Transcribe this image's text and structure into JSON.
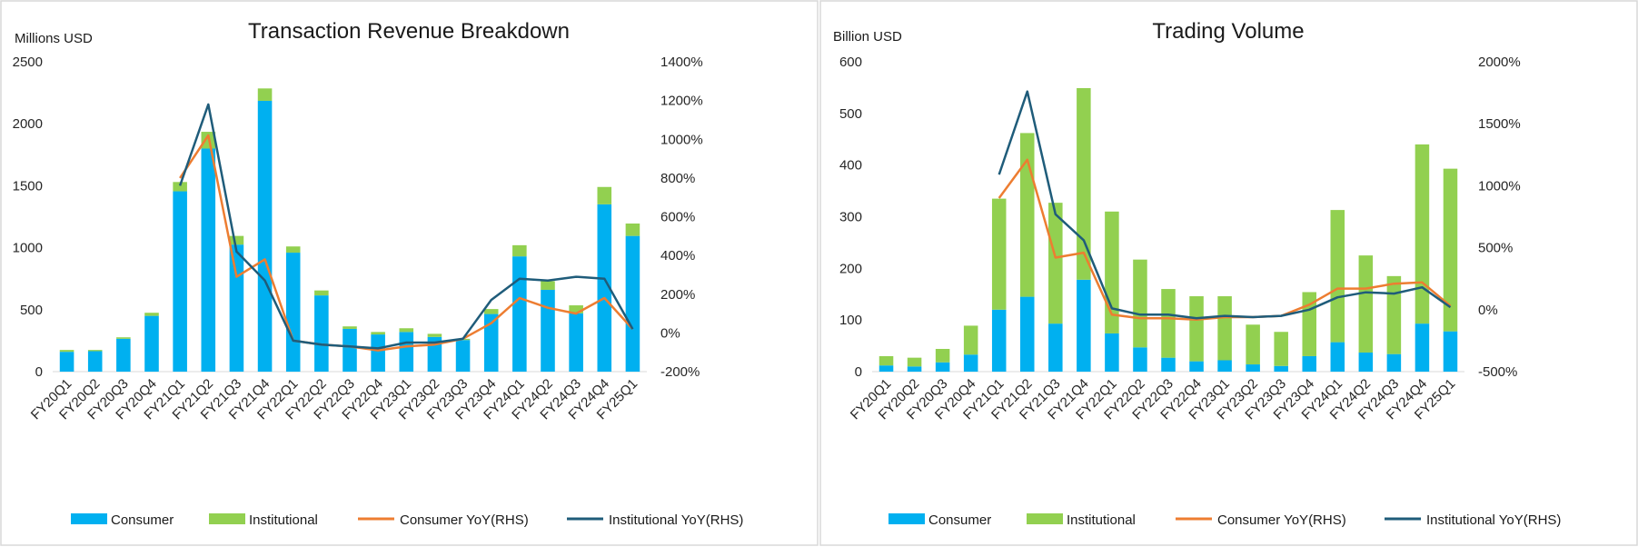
{
  "colors": {
    "consumer": "#00b0f0",
    "institutional": "#92d050",
    "consumer_yoy": "#ed7d31",
    "institutional_yoy": "#1f5c7a"
  },
  "chart_data": [
    {
      "type": "bar",
      "stacked": true,
      "title": "Transaction Revenue Breakdown",
      "ylabel": "Millions USD",
      "y2label": "",
      "categories": [
        "FY20Q1",
        "FY20Q2",
        "FY20Q3",
        "FY20Q4",
        "FY21Q1",
        "FY21Q2",
        "FY21Q3",
        "FY21Q4",
        "FY22Q1",
        "FY22Q2",
        "FY22Q3",
        "FY22Q4",
        "FY23Q1",
        "FY23Q2",
        "FY23Q3",
        "FY23Q4",
        "FY24Q1",
        "FY24Q2",
        "FY24Q3",
        "FY24Q4",
        "FY25Q1"
      ],
      "ylim": [
        0,
        2500
      ],
      "yticks": [
        0,
        500,
        1000,
        1500,
        2000,
        2500
      ],
      "ytick_labels": [
        "0",
        "500",
        "1000",
        "1500",
        "2000",
        "2500"
      ],
      "y2lim": [
        -200,
        1400
      ],
      "y2ticks": [
        -200,
        0,
        200,
        400,
        600,
        800,
        1000,
        1200,
        1400
      ],
      "y2tick_labels": [
        "-200%",
        "0%",
        "200%",
        "400%",
        "600%",
        "800%",
        "1000%",
        "1200%",
        "1400%"
      ],
      "series": [
        {
          "name": "Consumer",
          "kind": "bar",
          "values": [
            160,
            165,
            265,
            450,
            1455,
            1800,
            1025,
            2185,
            960,
            615,
            345,
            300,
            320,
            280,
            255,
            465,
            930,
            660,
            470,
            1350,
            1095
          ]
        },
        {
          "name": "Institutional",
          "kind": "bar",
          "values": [
            15,
            10,
            12,
            25,
            75,
            135,
            70,
            100,
            50,
            40,
            20,
            20,
            30,
            25,
            10,
            40,
            90,
            70,
            65,
            140,
            100
          ]
        },
        {
          "name": "Consumer YoY(RHS)",
          "kind": "line",
          "axis": "right",
          "values": [
            null,
            null,
            null,
            null,
            800,
            1020,
            290,
            380,
            -40,
            -60,
            -70,
            -90,
            -70,
            -60,
            -30,
            50,
            180,
            130,
            100,
            180,
            20
          ]
        },
        {
          "name": "Institutional YoY(RHS)",
          "kind": "line",
          "axis": "right",
          "values": [
            null,
            null,
            null,
            null,
            760,
            1180,
            420,
            270,
            -40,
            -60,
            -70,
            -80,
            -50,
            -50,
            -30,
            170,
            280,
            270,
            290,
            280,
            20
          ]
        }
      ]
    },
    {
      "type": "bar",
      "stacked": true,
      "title": "Trading Volume",
      "ylabel": "Billion USD",
      "y2label": "",
      "categories": [
        "FY20Q1",
        "FY20Q2",
        "FY20Q3",
        "FY20Q4",
        "FY21Q1",
        "FY21Q2",
        "FY21Q3",
        "FY21Q4",
        "FY22Q1",
        "FY22Q2",
        "FY22Q3",
        "FY22Q4",
        "FY23Q1",
        "FY23Q2",
        "FY23Q3",
        "FY23Q4",
        "FY24Q1",
        "FY24Q2",
        "FY24Q3",
        "FY24Q4",
        "FY25Q1"
      ],
      "ylim": [
        0,
        600
      ],
      "yticks": [
        0,
        100,
        200,
        300,
        400,
        500,
        600
      ],
      "ytick_labels": [
        "0",
        "100",
        "200",
        "300",
        "400",
        "500",
        "600"
      ],
      "y2lim": [
        -500,
        2000
      ],
      "y2ticks": [
        -500,
        0,
        500,
        1000,
        1500,
        2000
      ],
      "y2tick_labels": [
        "-500%",
        "0%",
        "500%",
        "1000%",
        "1500%",
        "2000%"
      ],
      "series": [
        {
          "name": "Consumer",
          "kind": "bar",
          "values": [
            12,
            10,
            18,
            33,
            120,
            145,
            93,
            178,
            74,
            47,
            27,
            20,
            22,
            14,
            11,
            30,
            57,
            37,
            34,
            93,
            78
          ]
        },
        {
          "name": "Institutional",
          "kind": "bar",
          "values": [
            18,
            17,
            26,
            56,
            215,
            317,
            234,
            371,
            236,
            170,
            133,
            126,
            124,
            77,
            66,
            124,
            256,
            188,
            151,
            347,
            315
          ]
        },
        {
          "name": "Consumer YoY(RHS)",
          "kind": "line",
          "axis": "right",
          "values": [
            null,
            null,
            null,
            null,
            900,
            1210,
            420,
            460,
            -40,
            -70,
            -70,
            -80,
            -60,
            -60,
            -50,
            40,
            170,
            170,
            210,
            220,
            30
          ]
        },
        {
          "name": "Institutional YoY(RHS)",
          "kind": "line",
          "axis": "right",
          "values": [
            null,
            null,
            null,
            null,
            1090,
            1760,
            770,
            560,
            10,
            -40,
            -40,
            -70,
            -50,
            -60,
            -50,
            0,
            100,
            140,
            130,
            180,
            20
          ]
        }
      ]
    }
  ]
}
